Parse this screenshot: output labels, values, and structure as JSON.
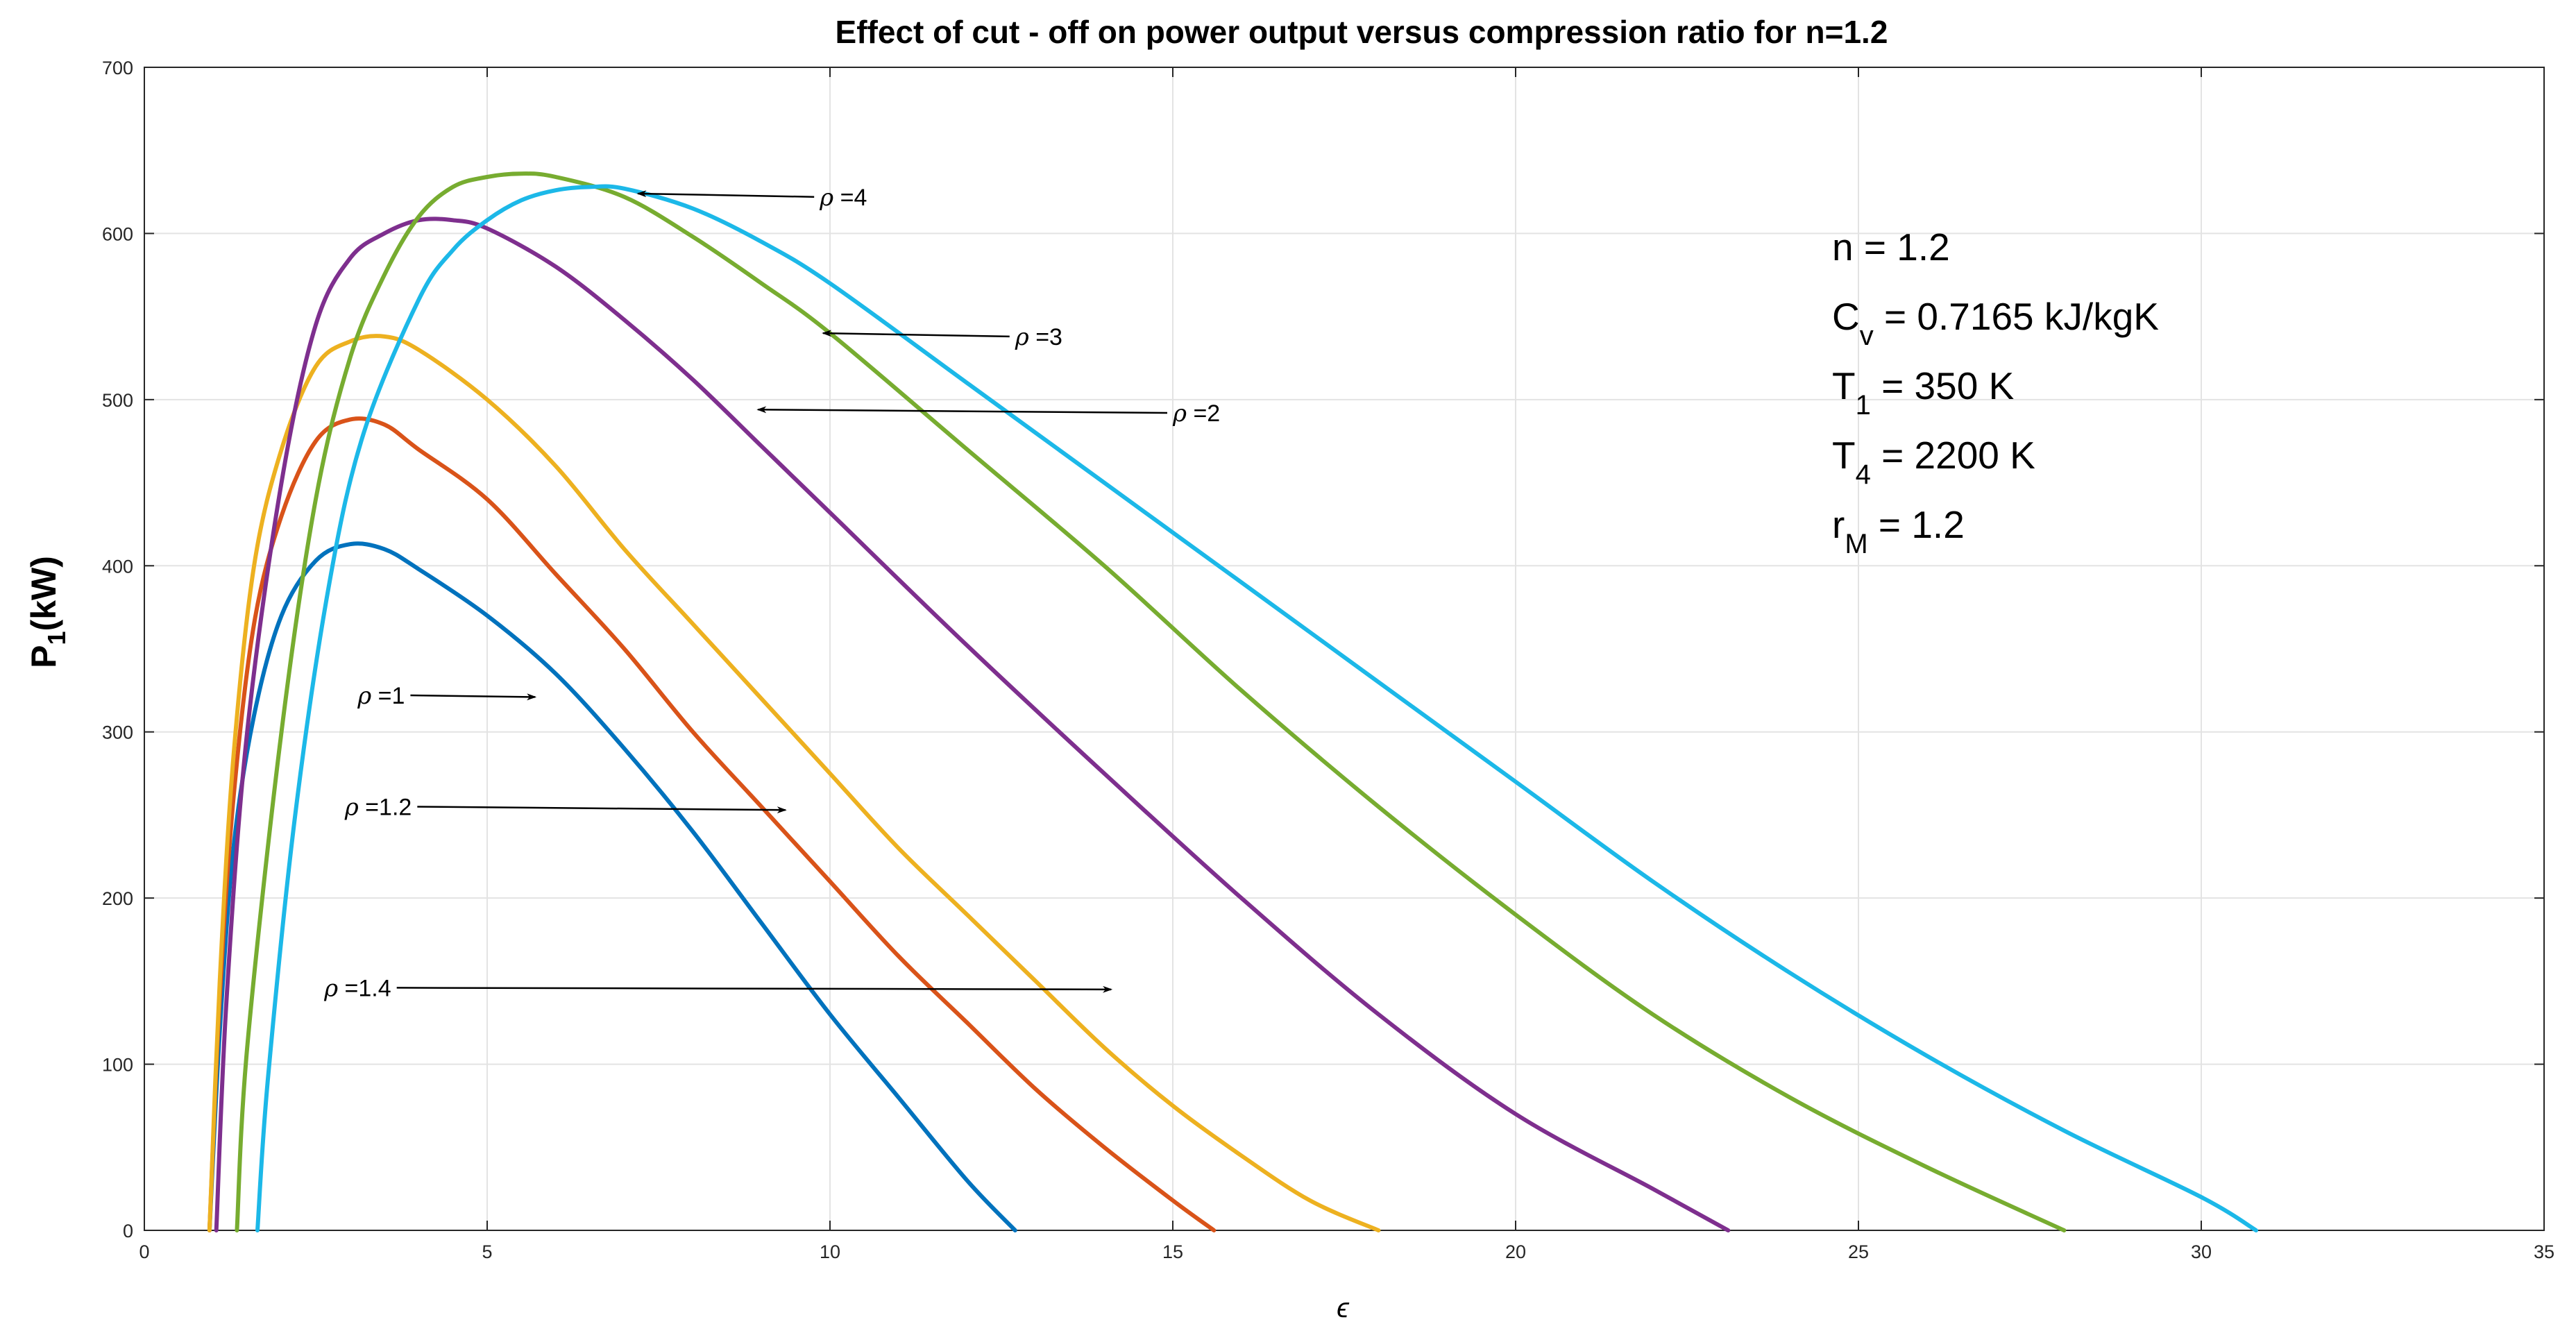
{
  "chart_data": {
    "type": "line",
    "title": "Effect of cut - off on power output versus compression ratio for n=1.2",
    "xlabel": "ϵ",
    "ylabel_main": "P",
    "ylabel_sub": "1",
    "ylabel_unit": "(kW)",
    "xlim": [
      0,
      35
    ],
    "ylim": [
      0,
      700
    ],
    "xticks": [
      0,
      5,
      10,
      15,
      20,
      25,
      30,
      35
    ],
    "yticks": [
      0,
      100,
      200,
      300,
      400,
      500,
      600,
      700
    ],
    "xtick_labels": [
      "0",
      "5",
      "10",
      "15",
      "20",
      "25",
      "30",
      "35"
    ],
    "ytick_labels": [
      "0",
      "100",
      "200",
      "300",
      "400",
      "500",
      "600",
      "700"
    ],
    "grid": true,
    "series": [
      {
        "name": "ρ =1",
        "color": "#0072BD",
        "points": [
          [
            0.95,
            0
          ],
          [
            1.1,
            120
          ],
          [
            1.3,
            230
          ],
          [
            1.6,
            310
          ],
          [
            2.0,
            370
          ],
          [
            2.5,
            403
          ],
          [
            3.0,
            413
          ],
          [
            3.5,
            410
          ],
          [
            4.0,
            398
          ],
          [
            5.0,
            370
          ],
          [
            6.0,
            335
          ],
          [
            7.0,
            290
          ],
          [
            8.0,
            240
          ],
          [
            9.0,
            185
          ],
          [
            10.0,
            130
          ],
          [
            11.0,
            80
          ],
          [
            12.0,
            30
          ],
          [
            12.7,
            0
          ]
        ]
      },
      {
        "name": "ρ =1.2",
        "color": "#D95319",
        "points": [
          [
            0.95,
            0
          ],
          [
            1.1,
            140
          ],
          [
            1.3,
            260
          ],
          [
            1.6,
            365
          ],
          [
            2.0,
            430
          ],
          [
            2.5,
            475
          ],
          [
            3.0,
            488
          ],
          [
            3.5,
            485
          ],
          [
            4.0,
            470
          ],
          [
            5.0,
            440
          ],
          [
            6.0,
            395
          ],
          [
            7.0,
            350
          ],
          [
            8.0,
            300
          ],
          [
            9.0,
            255
          ],
          [
            10.0,
            210
          ],
          [
            11.0,
            165
          ],
          [
            12.0,
            125
          ],
          [
            13.0,
            85
          ],
          [
            14.0,
            50
          ],
          [
            15.0,
            18
          ],
          [
            15.6,
            0
          ]
        ]
      },
      {
        "name": "ρ =1.4",
        "color": "#EDB120",
        "points": [
          [
            0.95,
            0
          ],
          [
            1.1,
            150
          ],
          [
            1.3,
            285
          ],
          [
            1.6,
            400
          ],
          [
            2.0,
            470
          ],
          [
            2.5,
            520
          ],
          [
            3.0,
            535
          ],
          [
            3.5,
            538
          ],
          [
            4.0,
            530
          ],
          [
            5.0,
            500
          ],
          [
            6.0,
            460
          ],
          [
            7.0,
            410
          ],
          [
            8.0,
            365
          ],
          [
            9.0,
            320
          ],
          [
            10.0,
            275
          ],
          [
            11.0,
            230
          ],
          [
            12.0,
            190
          ],
          [
            13.0,
            150
          ],
          [
            14.0,
            110
          ],
          [
            15.0,
            75
          ],
          [
            16.0,
            45
          ],
          [
            17.0,
            18
          ],
          [
            18.0,
            0
          ]
        ]
      },
      {
        "name": "ρ =2",
        "color": "#7E2F8E",
        "points": [
          [
            1.05,
            0
          ],
          [
            1.2,
            140
          ],
          [
            1.5,
            300
          ],
          [
            2.0,
            450
          ],
          [
            2.5,
            545
          ],
          [
            3.0,
            585
          ],
          [
            3.5,
            600
          ],
          [
            4.0,
            608
          ],
          [
            4.5,
            608
          ],
          [
            5.0,
            603
          ],
          [
            6.0,
            580
          ],
          [
            7.0,
            548
          ],
          [
            8.0,
            512
          ],
          [
            9.0,
            472
          ],
          [
            10.0,
            432
          ],
          [
            12.0,
            352
          ],
          [
            14.0,
            275
          ],
          [
            16.0,
            200
          ],
          [
            18.0,
            130
          ],
          [
            20.0,
            70
          ],
          [
            22.0,
            25
          ],
          [
            23.1,
            0
          ]
        ]
      },
      {
        "name": "ρ =3",
        "color": "#77AC30",
        "points": [
          [
            1.35,
            0
          ],
          [
            1.5,
            110
          ],
          [
            2.0,
            300
          ],
          [
            2.5,
            440
          ],
          [
            3.0,
            525
          ],
          [
            3.5,
            575
          ],
          [
            4.0,
            610
          ],
          [
            4.5,
            628
          ],
          [
            5.0,
            634
          ],
          [
            5.5,
            636
          ],
          [
            6.0,
            634
          ],
          [
            7.0,
            622
          ],
          [
            8.0,
            598
          ],
          [
            9.0,
            570
          ],
          [
            10.0,
            540
          ],
          [
            12.0,
            470
          ],
          [
            14.0,
            400
          ],
          [
            16.0,
            325
          ],
          [
            18.0,
            255
          ],
          [
            20.0,
            190
          ],
          [
            22.0,
            130
          ],
          [
            24.0,
            80
          ],
          [
            26.0,
            38
          ],
          [
            28.0,
            0
          ]
        ]
      },
      {
        "name": "ρ =4",
        "color": "#1CB8E8",
        "points": [
          [
            1.65,
            0
          ],
          [
            1.8,
            90
          ],
          [
            2.2,
            250
          ],
          [
            2.7,
            390
          ],
          [
            3.2,
            480
          ],
          [
            4.0,
            560
          ],
          [
            4.5,
            590
          ],
          [
            5.0,
            608
          ],
          [
            5.5,
            620
          ],
          [
            6.0,
            626
          ],
          [
            6.5,
            628
          ],
          [
            7.0,
            627
          ],
          [
            8.0,
            615
          ],
          [
            9.0,
            595
          ],
          [
            10.0,
            570
          ],
          [
            12.0,
            510
          ],
          [
            14.0,
            450
          ],
          [
            16.0,
            390
          ],
          [
            18.0,
            330
          ],
          [
            20.0,
            270
          ],
          [
            22.0,
            210
          ],
          [
            24.0,
            155
          ],
          [
            26.0,
            105
          ],
          [
            28.0,
            60
          ],
          [
            30.0,
            20
          ],
          [
            30.8,
            0
          ]
        ]
      }
    ],
    "annotations": [
      {
        "label": "ρ =4",
        "text_at": [
          9.85,
          622
        ],
        "arrow_to": [
          7.2,
          624
        ]
      },
      {
        "label": "ρ =3",
        "text_at": [
          12.7,
          538
        ],
        "arrow_to": [
          9.9,
          540
        ]
      },
      {
        "label": "ρ =2",
        "text_at": [
          15.0,
          492
        ],
        "arrow_to": [
          8.95,
          494
        ]
      },
      {
        "label": "ρ =1",
        "text_at": [
          3.8,
          322
        ],
        "arrow_to": [
          5.7,
          321
        ]
      },
      {
        "label": "ρ =1.2",
        "text_at": [
          3.9,
          255
        ],
        "arrow_to": [
          9.35,
          253
        ]
      },
      {
        "label": "ρ =1.4",
        "text_at": [
          3.6,
          146
        ],
        "arrow_to": [
          14.1,
          145
        ]
      }
    ],
    "parameters": [
      {
        "main": "n",
        "sub": "",
        "rest": " = 1.2"
      },
      {
        "main": "C",
        "sub": "v",
        "rest": " = 0.7165 kJ/kgK"
      },
      {
        "main": "T",
        "sub": "1",
        "rest": " = 350 K"
      },
      {
        "main": "T",
        "sub": "4",
        "rest": " = 2200 K"
      },
      {
        "main": " r",
        "sub": "M",
        "rest": " = 1.2"
      }
    ]
  }
}
